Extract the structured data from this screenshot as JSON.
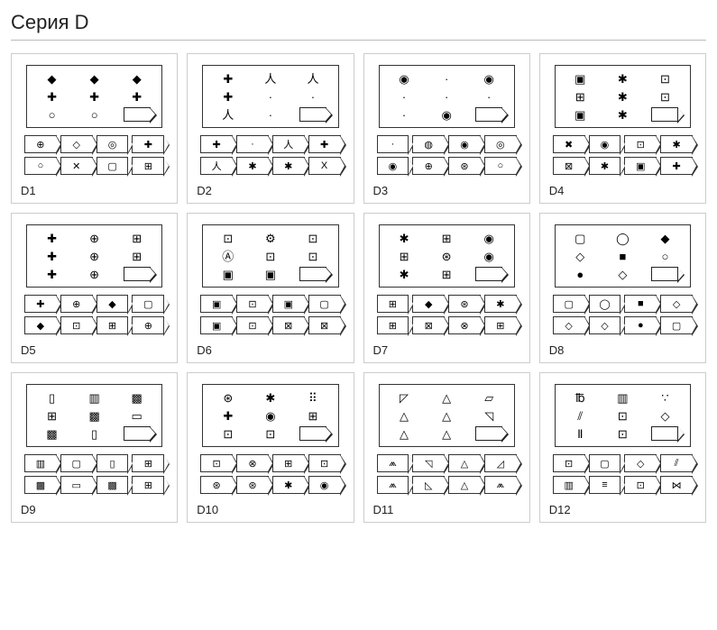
{
  "title": "Серия D",
  "layout": {
    "grid_cols": 4,
    "grid_rows": 3,
    "card_border": "#cccccc",
    "matrix_border": "#333333",
    "answer_border": "#333333",
    "background": "#ffffff",
    "title_fontsize": 22,
    "label_fontsize": 13
  },
  "items": [
    {
      "label": "D1",
      "matrix": [
        "◆",
        "◆",
        "◆",
        "✚",
        "✚",
        "✚",
        "○",
        "○",
        ""
      ],
      "blank_index": 8,
      "answers": [
        "⊕",
        "◇",
        "◎",
        "✚",
        "○",
        "✕",
        "▢",
        "⊞"
      ]
    },
    {
      "label": "D2",
      "matrix": [
        "✚",
        "人",
        "人",
        "✚",
        "·",
        "·",
        "人",
        "·",
        ""
      ],
      "blank_index": 8,
      "answers": [
        "✚",
        "·",
        "人",
        "✚",
        "人",
        "✱",
        "✱",
        "X"
      ]
    },
    {
      "label": "D3",
      "matrix": [
        "◉",
        "·",
        "◉",
        "·",
        "·",
        "·",
        "·",
        "◉",
        ""
      ],
      "blank_index": 8,
      "answers": [
        "·",
        "◍",
        "◉",
        "◎",
        "◉",
        "⊕",
        "⊛",
        "○"
      ]
    },
    {
      "label": "D4",
      "matrix": [
        "▣",
        "✱",
        "⊡",
        "⊞",
        "✱",
        "⊡",
        "▣",
        "✱",
        ""
      ],
      "blank_index": 8,
      "answers": [
        "✖",
        "◉",
        "⊡",
        "✱",
        "⊠",
        "✱",
        "▣",
        "✚"
      ]
    },
    {
      "label": "D5",
      "matrix": [
        "✚",
        "⊕",
        "⊞",
        "✚",
        "⊕",
        "⊞",
        "✚",
        "⊕",
        ""
      ],
      "blank_index": 8,
      "answers": [
        "✚",
        "⊕",
        "◆",
        "▢",
        "◆",
        "⊡",
        "⊞",
        "⊕"
      ]
    },
    {
      "label": "D6",
      "matrix": [
        "⊡",
        "⚙",
        "⊡",
        "Ⓐ",
        "⊡",
        "⊡",
        "▣",
        "▣",
        ""
      ],
      "blank_index": 8,
      "answers": [
        "▣",
        "⊡",
        "▣",
        "▢",
        "▣",
        "⊡",
        "⊠",
        "⊠"
      ]
    },
    {
      "label": "D7",
      "matrix": [
        "✱",
        "⊞",
        "◉",
        "⊞",
        "⊛",
        "◉",
        "✱",
        "⊞",
        ""
      ],
      "blank_index": 8,
      "answers": [
        "⊞",
        "◆",
        "⊛",
        "✱",
        "⊞",
        "⊠",
        "⊗",
        "⊞"
      ]
    },
    {
      "label": "D8",
      "matrix": [
        "▢",
        "◯",
        "◆",
        "◇",
        "■",
        "○",
        "●",
        "◇",
        ""
      ],
      "blank_index": 8,
      "answers": [
        "▢",
        "◯",
        "■",
        "◇",
        "◇",
        "◇",
        "●",
        "▢"
      ]
    },
    {
      "label": "D9",
      "matrix": [
        "▯",
        "▥",
        "▩",
        "⊞",
        "▩",
        "▭",
        "▩",
        "▯",
        ""
      ],
      "blank_index": 8,
      "answers": [
        "▥",
        "▢",
        "▯",
        "⊞",
        "▩",
        "▭",
        "▩",
        "⊞"
      ]
    },
    {
      "label": "D10",
      "matrix": [
        "⊛",
        "✱",
        "⠿",
        "✚",
        "◉",
        "⊞",
        "⊡",
        "⊡",
        ""
      ],
      "blank_index": 8,
      "answers": [
        "⊡",
        "⊗",
        "⊞",
        "⊡",
        "⊛",
        "⊛",
        "✱",
        "◉"
      ]
    },
    {
      "label": "D11",
      "matrix": [
        "◸",
        "△",
        "▱",
        "△",
        "△",
        "◹",
        "△",
        "△",
        ""
      ],
      "blank_index": 8,
      "answers": [
        "⩕",
        "◹",
        "△",
        "◿",
        "⩕",
        "◺",
        "△",
        "⩕"
      ]
    },
    {
      "label": "D12",
      "matrix": [
        "℔",
        "▥",
        "∵",
        "⫽",
        "⊡",
        "◇",
        "Ⅱ",
        "⊡",
        ""
      ],
      "blank_index": 8,
      "answers": [
        "⊡",
        "▢",
        "◇",
        "⫽",
        "▥",
        "≡",
        "⊡",
        "⋈"
      ]
    }
  ]
}
